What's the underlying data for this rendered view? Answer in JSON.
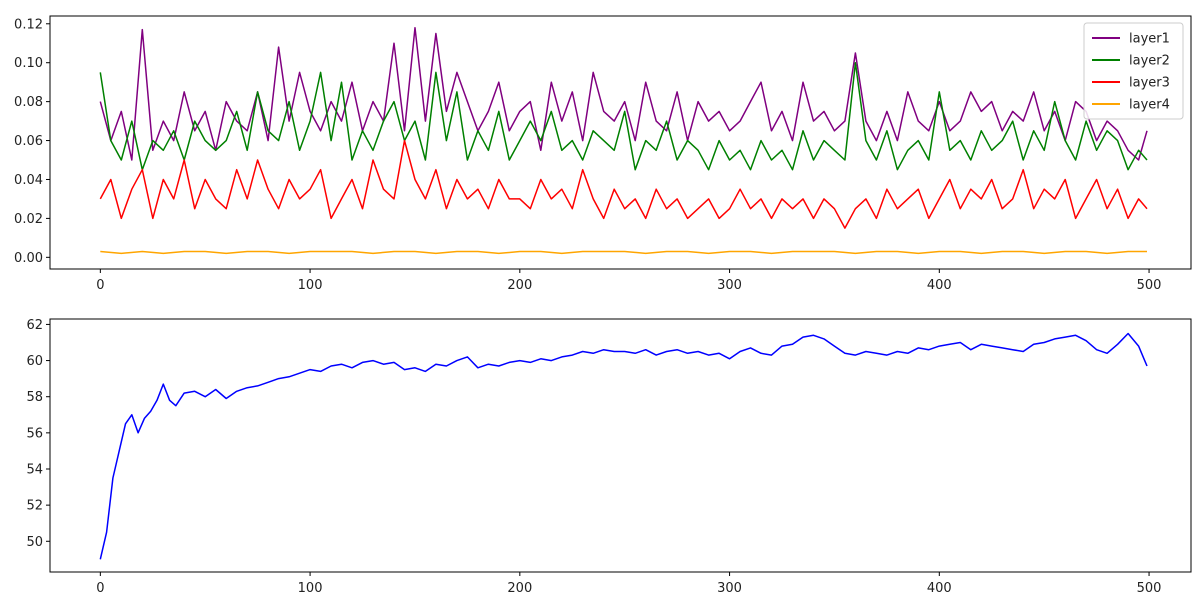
{
  "chart_data": [
    {
      "type": "line",
      "title": "",
      "xlabel": "",
      "ylabel": "",
      "xlim": [
        -24,
        520
      ],
      "ylim": [
        -0.006,
        0.124
      ],
      "xticks": [
        0,
        100,
        200,
        300,
        400,
        500
      ],
      "yticks": [
        0.0,
        0.02,
        0.04,
        0.06,
        0.08,
        0.1,
        0.12
      ],
      "ytick_labels": [
        "0.00",
        "0.02",
        "0.04",
        "0.06",
        "0.08",
        "0.10",
        "0.12"
      ],
      "legend": "top-right",
      "grid": false,
      "series": [
        {
          "name": "layer1",
          "color": "#800080",
          "x": [
            0,
            5,
            10,
            15,
            20,
            25,
            30,
            35,
            40,
            45,
            50,
            55,
            60,
            65,
            70,
            75,
            80,
            85,
            90,
            95,
            100,
            105,
            110,
            115,
            120,
            125,
            130,
            135,
            140,
            145,
            150,
            155,
            160,
            165,
            170,
            175,
            180,
            185,
            190,
            195,
            200,
            205,
            210,
            215,
            220,
            225,
            230,
            235,
            240,
            245,
            250,
            255,
            260,
            265,
            270,
            275,
            280,
            285,
            290,
            295,
            300,
            305,
            310,
            315,
            320,
            325,
            330,
            335,
            340,
            345,
            350,
            355,
            360,
            365,
            370,
            375,
            380,
            385,
            390,
            395,
            400,
            405,
            410,
            415,
            420,
            425,
            430,
            435,
            440,
            445,
            450,
            455,
            460,
            465,
            470,
            475,
            480,
            485,
            490,
            495,
            499
          ],
          "y": [
            0.08,
            0.06,
            0.075,
            0.05,
            0.117,
            0.055,
            0.07,
            0.06,
            0.085,
            0.065,
            0.075,
            0.055,
            0.08,
            0.07,
            0.065,
            0.085,
            0.06,
            0.108,
            0.07,
            0.095,
            0.075,
            0.065,
            0.08,
            0.07,
            0.09,
            0.065,
            0.08,
            0.07,
            0.11,
            0.065,
            0.118,
            0.07,
            0.115,
            0.075,
            0.095,
            0.08,
            0.065,
            0.075,
            0.09,
            0.065,
            0.075,
            0.08,
            0.055,
            0.09,
            0.07,
            0.085,
            0.06,
            0.095,
            0.075,
            0.07,
            0.08,
            0.06,
            0.09,
            0.07,
            0.065,
            0.085,
            0.06,
            0.08,
            0.07,
            0.075,
            0.065,
            0.07,
            0.08,
            0.09,
            0.065,
            0.075,
            0.06,
            0.09,
            0.07,
            0.075,
            0.065,
            0.07,
            0.105,
            0.07,
            0.06,
            0.075,
            0.06,
            0.085,
            0.07,
            0.065,
            0.08,
            0.065,
            0.07,
            0.085,
            0.075,
            0.08,
            0.065,
            0.075,
            0.07,
            0.085,
            0.065,
            0.075,
            0.06,
            0.08,
            0.075,
            0.06,
            0.07,
            0.065,
            0.055,
            0.05,
            0.065
          ]
        },
        {
          "name": "layer2",
          "color": "#008000",
          "x": [
            0,
            5,
            10,
            15,
            20,
            25,
            30,
            35,
            40,
            45,
            50,
            55,
            60,
            65,
            70,
            75,
            80,
            85,
            90,
            95,
            100,
            105,
            110,
            115,
            120,
            125,
            130,
            135,
            140,
            145,
            150,
            155,
            160,
            165,
            170,
            175,
            180,
            185,
            190,
            195,
            200,
            205,
            210,
            215,
            220,
            225,
            230,
            235,
            240,
            245,
            250,
            255,
            260,
            265,
            270,
            275,
            280,
            285,
            290,
            295,
            300,
            305,
            310,
            315,
            320,
            325,
            330,
            335,
            340,
            345,
            350,
            355,
            360,
            365,
            370,
            375,
            380,
            385,
            390,
            395,
            400,
            405,
            410,
            415,
            420,
            425,
            430,
            435,
            440,
            445,
            450,
            455,
            460,
            465,
            470,
            475,
            480,
            485,
            490,
            495,
            499
          ],
          "y": [
            0.095,
            0.06,
            0.05,
            0.07,
            0.045,
            0.06,
            0.055,
            0.065,
            0.05,
            0.07,
            0.06,
            0.055,
            0.06,
            0.075,
            0.055,
            0.085,
            0.065,
            0.06,
            0.08,
            0.055,
            0.07,
            0.095,
            0.06,
            0.09,
            0.05,
            0.065,
            0.055,
            0.07,
            0.08,
            0.06,
            0.07,
            0.05,
            0.095,
            0.06,
            0.085,
            0.05,
            0.065,
            0.055,
            0.075,
            0.05,
            0.06,
            0.07,
            0.06,
            0.075,
            0.055,
            0.06,
            0.05,
            0.065,
            0.06,
            0.055,
            0.075,
            0.045,
            0.06,
            0.055,
            0.07,
            0.05,
            0.06,
            0.055,
            0.045,
            0.06,
            0.05,
            0.055,
            0.045,
            0.06,
            0.05,
            0.055,
            0.045,
            0.065,
            0.05,
            0.06,
            0.055,
            0.05,
            0.1,
            0.06,
            0.05,
            0.065,
            0.045,
            0.055,
            0.06,
            0.05,
            0.085,
            0.055,
            0.06,
            0.05,
            0.065,
            0.055,
            0.06,
            0.07,
            0.05,
            0.065,
            0.055,
            0.08,
            0.06,
            0.05,
            0.07,
            0.055,
            0.065,
            0.06,
            0.045,
            0.055,
            0.05
          ]
        },
        {
          "name": "layer3",
          "color": "#ff0000",
          "x": [
            0,
            5,
            10,
            15,
            20,
            25,
            30,
            35,
            40,
            45,
            50,
            55,
            60,
            65,
            70,
            75,
            80,
            85,
            90,
            95,
            100,
            105,
            110,
            115,
            120,
            125,
            130,
            135,
            140,
            145,
            150,
            155,
            160,
            165,
            170,
            175,
            180,
            185,
            190,
            195,
            200,
            205,
            210,
            215,
            220,
            225,
            230,
            235,
            240,
            245,
            250,
            255,
            260,
            265,
            270,
            275,
            280,
            285,
            290,
            295,
            300,
            305,
            310,
            315,
            320,
            325,
            330,
            335,
            340,
            345,
            350,
            355,
            360,
            365,
            370,
            375,
            380,
            385,
            390,
            395,
            400,
            405,
            410,
            415,
            420,
            425,
            430,
            435,
            440,
            445,
            450,
            455,
            460,
            465,
            470,
            475,
            480,
            485,
            490,
            495,
            499
          ],
          "y": [
            0.03,
            0.04,
            0.02,
            0.035,
            0.045,
            0.02,
            0.04,
            0.03,
            0.05,
            0.025,
            0.04,
            0.03,
            0.025,
            0.045,
            0.03,
            0.05,
            0.035,
            0.025,
            0.04,
            0.03,
            0.035,
            0.045,
            0.02,
            0.03,
            0.04,
            0.025,
            0.05,
            0.035,
            0.03,
            0.06,
            0.04,
            0.03,
            0.045,
            0.025,
            0.04,
            0.03,
            0.035,
            0.025,
            0.04,
            0.03,
            0.03,
            0.025,
            0.04,
            0.03,
            0.035,
            0.025,
            0.045,
            0.03,
            0.02,
            0.035,
            0.025,
            0.03,
            0.02,
            0.035,
            0.025,
            0.03,
            0.02,
            0.025,
            0.03,
            0.02,
            0.025,
            0.035,
            0.025,
            0.03,
            0.02,
            0.03,
            0.025,
            0.03,
            0.02,
            0.03,
            0.025,
            0.015,
            0.025,
            0.03,
            0.02,
            0.035,
            0.025,
            0.03,
            0.035,
            0.02,
            0.03,
            0.04,
            0.025,
            0.035,
            0.03,
            0.04,
            0.025,
            0.03,
            0.045,
            0.025,
            0.035,
            0.03,
            0.04,
            0.02,
            0.03,
            0.04,
            0.025,
            0.035,
            0.02,
            0.03,
            0.025
          ]
        },
        {
          "name": "layer4",
          "color": "#ffa500",
          "x": [
            0,
            10,
            20,
            30,
            40,
            50,
            60,
            70,
            80,
            90,
            100,
            110,
            120,
            130,
            140,
            150,
            160,
            170,
            180,
            190,
            200,
            210,
            220,
            230,
            240,
            250,
            260,
            270,
            280,
            290,
            300,
            310,
            320,
            330,
            340,
            350,
            360,
            370,
            380,
            390,
            400,
            410,
            420,
            430,
            440,
            450,
            460,
            470,
            480,
            490,
            499
          ],
          "y": [
            0.003,
            0.002,
            0.003,
            0.002,
            0.003,
            0.003,
            0.002,
            0.003,
            0.003,
            0.002,
            0.003,
            0.003,
            0.003,
            0.002,
            0.003,
            0.003,
            0.002,
            0.003,
            0.003,
            0.002,
            0.003,
            0.003,
            0.002,
            0.003,
            0.003,
            0.003,
            0.002,
            0.003,
            0.003,
            0.002,
            0.003,
            0.003,
            0.002,
            0.003,
            0.003,
            0.003,
            0.002,
            0.003,
            0.003,
            0.002,
            0.003,
            0.003,
            0.002,
            0.003,
            0.003,
            0.002,
            0.003,
            0.003,
            0.002,
            0.003,
            0.003
          ]
        }
      ]
    },
    {
      "type": "line",
      "title": "",
      "xlabel": "",
      "ylabel": "",
      "xlim": [
        -24,
        520
      ],
      "ylim": [
        48.3,
        62.3
      ],
      "xticks": [
        0,
        100,
        200,
        300,
        400,
        500
      ],
      "yticks": [
        50,
        52,
        54,
        56,
        58,
        60,
        62
      ],
      "legend": "none",
      "grid": false,
      "series": [
        {
          "color": "#0000ff",
          "x": [
            0,
            3,
            6,
            9,
            12,
            15,
            18,
            21,
            24,
            27,
            30,
            33,
            36,
            40,
            45,
            50,
            55,
            60,
            65,
            70,
            75,
            80,
            85,
            90,
            95,
            100,
            105,
            110,
            115,
            120,
            125,
            130,
            135,
            140,
            145,
            150,
            155,
            160,
            165,
            170,
            175,
            180,
            185,
            190,
            195,
            200,
            205,
            210,
            215,
            220,
            225,
            230,
            235,
            240,
            245,
            250,
            255,
            260,
            265,
            270,
            275,
            280,
            285,
            290,
            295,
            300,
            305,
            310,
            315,
            320,
            325,
            330,
            335,
            340,
            345,
            350,
            355,
            360,
            365,
            370,
            375,
            380,
            385,
            390,
            395,
            400,
            405,
            410,
            415,
            420,
            425,
            430,
            435,
            440,
            445,
            450,
            455,
            460,
            465,
            470,
            475,
            480,
            485,
            490,
            495,
            499
          ],
          "y": [
            49.0,
            50.5,
            53.5,
            55.0,
            56.5,
            57.0,
            56.0,
            56.8,
            57.2,
            57.8,
            58.7,
            57.8,
            57.5,
            58.2,
            58.3,
            58.0,
            58.4,
            57.9,
            58.3,
            58.5,
            58.6,
            58.8,
            59.0,
            59.1,
            59.3,
            59.5,
            59.4,
            59.7,
            59.8,
            59.6,
            59.9,
            60.0,
            59.8,
            59.9,
            59.5,
            59.6,
            59.4,
            59.8,
            59.7,
            60.0,
            60.2,
            59.6,
            59.8,
            59.7,
            59.9,
            60.0,
            59.9,
            60.1,
            60.0,
            60.2,
            60.3,
            60.5,
            60.4,
            60.6,
            60.5,
            60.5,
            60.4,
            60.6,
            60.3,
            60.5,
            60.6,
            60.4,
            60.5,
            60.3,
            60.4,
            60.1,
            60.5,
            60.7,
            60.4,
            60.3,
            60.8,
            60.9,
            61.3,
            61.4,
            61.2,
            60.8,
            60.4,
            60.3,
            60.5,
            60.4,
            60.3,
            60.5,
            60.4,
            60.7,
            60.6,
            60.8,
            60.9,
            61.0,
            60.6,
            60.9,
            60.8,
            60.7,
            60.6,
            60.5,
            60.9,
            61.0,
            61.2,
            61.3,
            61.4,
            61.1,
            60.6,
            60.4,
            60.9,
            61.5,
            60.8,
            59.7
          ]
        }
      ]
    }
  ],
  "legend_entries": [
    "layer1",
    "layer2",
    "layer3",
    "layer4"
  ]
}
